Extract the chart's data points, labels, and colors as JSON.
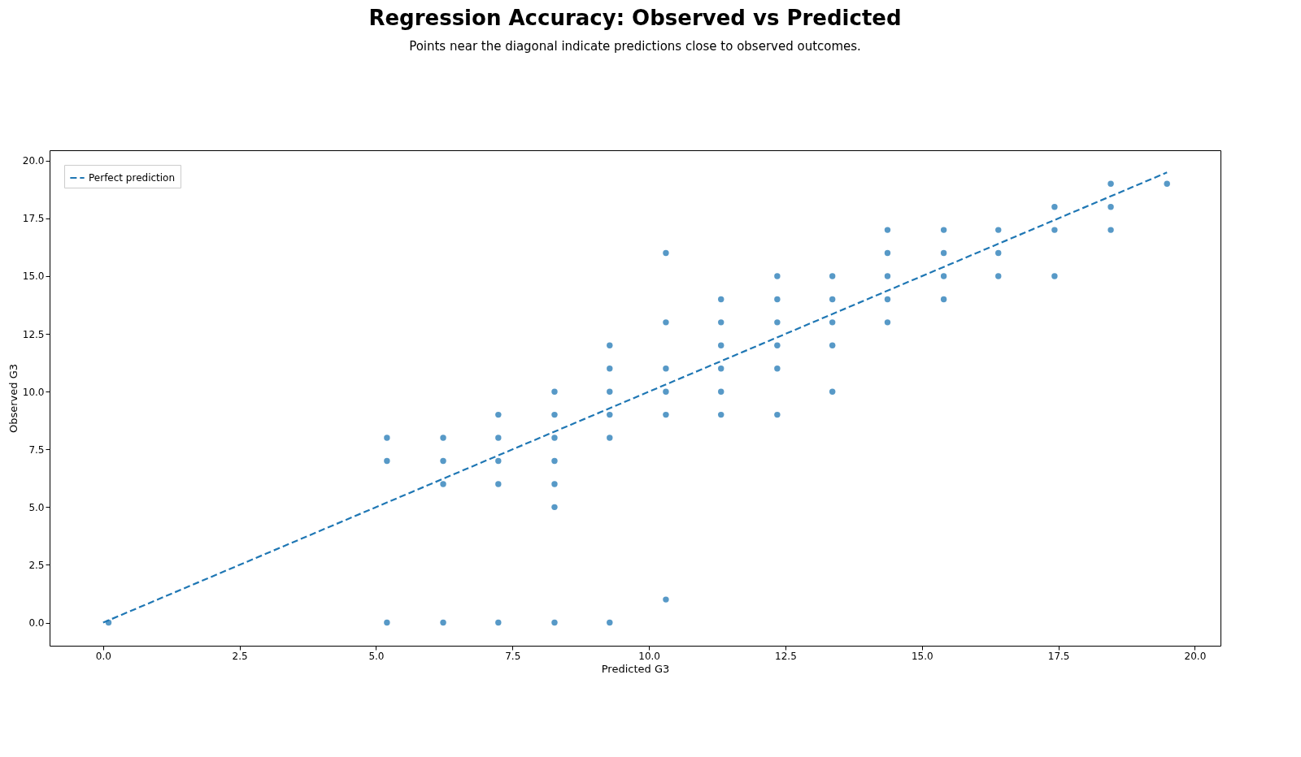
{
  "chart_data": {
    "type": "scatter",
    "title": "Regression Accuracy: Observed vs Predicted",
    "subtitle": "Points near the diagonal indicate predictions close to observed outcomes.",
    "xlabel": "Predicted G3",
    "ylabel": "Observed G3",
    "series": [
      {
        "color": "#1f77b4",
        "marker": "circle",
        "x": [
          0.1,
          5.2,
          5.2,
          5.2,
          6.23,
          6.23,
          6.23,
          6.23,
          7.24,
          7.24,
          7.24,
          7.24,
          7.24,
          8.27,
          8.27,
          8.27,
          8.27,
          8.27,
          8.27,
          8.27,
          9.28,
          9.28,
          9.28,
          9.28,
          9.28,
          9.28,
          10.31,
          10.31,
          10.31,
          10.31,
          10.31,
          10.31,
          11.32,
          11.32,
          11.32,
          11.32,
          11.32,
          11.32,
          12.35,
          12.35,
          12.35,
          12.35,
          12.35,
          12.35,
          13.36,
          13.36,
          13.36,
          13.36,
          13.36,
          14.37,
          14.37,
          14.37,
          14.37,
          14.37,
          15.4,
          15.4,
          15.4,
          15.4,
          16.4,
          16.4,
          16.4,
          17.43,
          17.43,
          17.43,
          18.46,
          18.46,
          18.46,
          19.49
        ],
        "values": [
          0,
          8,
          7,
          0,
          8,
          7,
          6,
          0,
          9,
          8,
          7,
          6,
          0,
          10,
          9,
          8,
          7,
          6,
          5,
          0,
          12,
          11,
          10,
          9,
          8,
          0,
          16,
          13,
          11,
          10,
          9,
          1,
          14,
          13,
          12,
          11,
          10,
          9,
          15,
          14,
          13,
          12,
          11,
          9,
          15,
          14,
          13,
          12,
          10,
          17,
          16,
          15,
          14,
          13,
          17,
          16,
          15,
          14,
          17,
          16,
          15,
          18,
          17,
          15,
          19,
          18,
          17,
          19
        ]
      },
      {
        "type": "line",
        "name": "Perfect prediction",
        "color": "#1f77b4",
        "line_style": "dashed",
        "x": [
          0,
          19.49
        ],
        "values": [
          0,
          19.49
        ]
      }
    ],
    "xlim": [
      -0.98,
      20.47
    ],
    "ylim": [
      -1.0,
      20.45
    ],
    "xticks": [
      {
        "value": 0,
        "label": "0.0"
      },
      {
        "value": 2.5,
        "label": "2.5"
      },
      {
        "value": 5,
        "label": "5.0"
      },
      {
        "value": 7.5,
        "label": "7.5"
      },
      {
        "value": 10,
        "label": "10.0"
      },
      {
        "value": 12.5,
        "label": "12.5"
      },
      {
        "value": 15,
        "label": "15.0"
      },
      {
        "value": 17.5,
        "label": "17.5"
      },
      {
        "value": 20,
        "label": "20.0"
      }
    ],
    "yticks": [
      {
        "value": 0,
        "label": "0.0"
      },
      {
        "value": 2.5,
        "label": "2.5"
      },
      {
        "value": 5,
        "label": "5.0"
      },
      {
        "value": 7.5,
        "label": "7.5"
      },
      {
        "value": 10,
        "label": "10.0"
      },
      {
        "value": 12.5,
        "label": "12.5"
      },
      {
        "value": 15,
        "label": "15.0"
      },
      {
        "value": 17.5,
        "label": "17.5"
      },
      {
        "value": 20,
        "label": "20.0"
      }
    ],
    "grid": false,
    "legend": "top left"
  }
}
